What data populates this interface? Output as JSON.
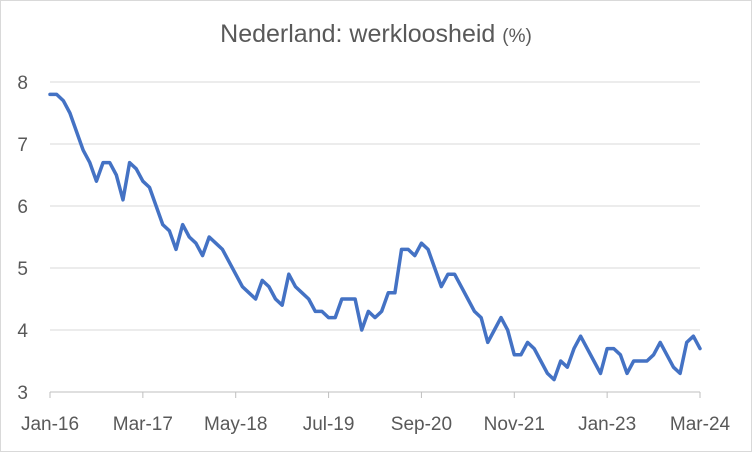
{
  "chart_data": {
    "type": "line",
    "title": "Nederland: werkloosheid",
    "title_unit": "(%)",
    "xlabel": "",
    "ylabel": "",
    "x_tick_labels": [
      "Jan-16",
      "Mar-17",
      "May-18",
      "Jul-19",
      "Sep-20",
      "Nov-21",
      "Jan-23",
      "Mar-24"
    ],
    "y_ticks": [
      3,
      4,
      5,
      6,
      7,
      8
    ],
    "ylim": [
      3,
      8
    ],
    "x_range": [
      "2016-01",
      "2024-03"
    ],
    "grid": "horizontal",
    "legend": "none",
    "line_color": "#4472C4",
    "series": [
      {
        "x": [
          "2016-01",
          "2016-02",
          "2016-03",
          "2016-04",
          "2016-05",
          "2016-06",
          "2016-07",
          "2016-08",
          "2016-09",
          "2016-10",
          "2016-11",
          "2016-12",
          "2017-01",
          "2017-02",
          "2017-03",
          "2017-04",
          "2017-05",
          "2017-06",
          "2017-07",
          "2017-08",
          "2017-09",
          "2017-10",
          "2017-11",
          "2017-12",
          "2018-01",
          "2018-02",
          "2018-03",
          "2018-04",
          "2018-05",
          "2018-06",
          "2018-07",
          "2018-08",
          "2018-09",
          "2018-10",
          "2018-11",
          "2018-12",
          "2019-01",
          "2019-02",
          "2019-03",
          "2019-04",
          "2019-05",
          "2019-06",
          "2019-07",
          "2019-08",
          "2019-09",
          "2019-10",
          "2019-11",
          "2019-12",
          "2020-01",
          "2020-02",
          "2020-03",
          "2020-04",
          "2020-05",
          "2020-06",
          "2020-07",
          "2020-08",
          "2020-09",
          "2020-10",
          "2020-11",
          "2020-12",
          "2021-01",
          "2021-02",
          "2021-03",
          "2021-04",
          "2021-05",
          "2021-06",
          "2021-07",
          "2021-08",
          "2021-09",
          "2021-10",
          "2021-11",
          "2021-12",
          "2022-01",
          "2022-02",
          "2022-03",
          "2022-04",
          "2022-05",
          "2022-06",
          "2022-07",
          "2022-08",
          "2022-09",
          "2022-10",
          "2022-11",
          "2022-12",
          "2023-01",
          "2023-02",
          "2023-03",
          "2023-04",
          "2023-05",
          "2023-06",
          "2023-07",
          "2023-08",
          "2023-09",
          "2023-10",
          "2023-11",
          "2023-12",
          "2024-01",
          "2024-02",
          "2024-03"
        ],
        "values": [
          7.8,
          7.8,
          7.7,
          7.5,
          7.2,
          6.9,
          6.7,
          6.4,
          6.7,
          6.7,
          6.5,
          6.1,
          6.7,
          6.6,
          6.4,
          6.3,
          6.0,
          5.7,
          5.6,
          5.3,
          5.7,
          5.5,
          5.4,
          5.2,
          5.5,
          5.4,
          5.3,
          5.1,
          4.9,
          4.7,
          4.6,
          4.5,
          4.8,
          4.7,
          4.5,
          4.4,
          4.9,
          4.7,
          4.6,
          4.5,
          4.3,
          4.3,
          4.2,
          4.2,
          4.5,
          4.5,
          4.5,
          4.0,
          4.3,
          4.2,
          4.3,
          4.6,
          4.6,
          5.3,
          5.3,
          5.2,
          5.4,
          5.3,
          5.0,
          4.7,
          4.9,
          4.9,
          4.7,
          4.5,
          4.3,
          4.2,
          3.8,
          4.0,
          4.2,
          4.0,
          3.6,
          3.6,
          3.8,
          3.7,
          3.5,
          3.3,
          3.2,
          3.5,
          3.4,
          3.7,
          3.9,
          3.7,
          3.5,
          3.3,
          3.7,
          3.7,
          3.6,
          3.3,
          3.5,
          3.5,
          3.5,
          3.6,
          3.8,
          3.6,
          3.4,
          3.3,
          3.8,
          3.9,
          3.7
        ]
      }
    ]
  }
}
